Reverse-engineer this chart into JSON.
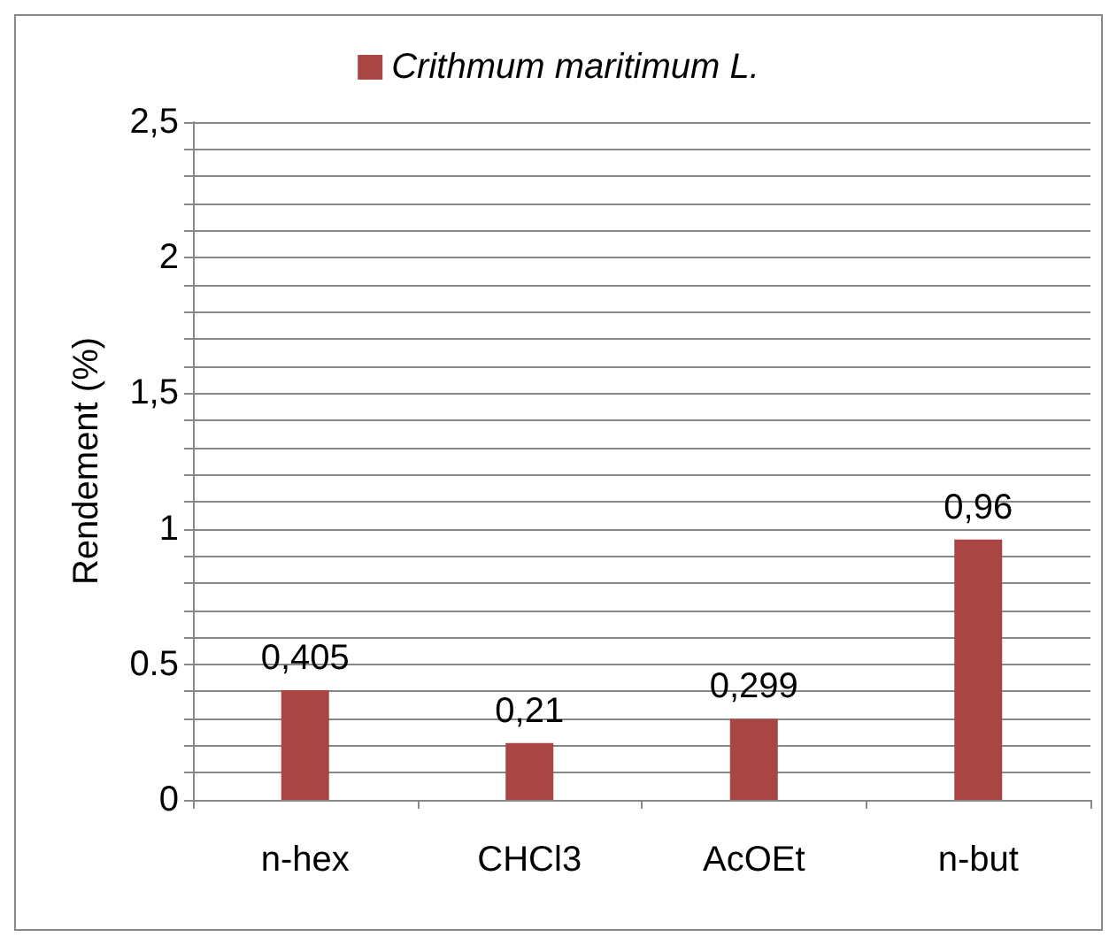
{
  "chart_data": {
    "type": "bar",
    "ylabel": "Rendement (%)",
    "categories": [
      "n-hex",
      "CHCl3",
      "AcOEt",
      "n-but"
    ],
    "series": [
      {
        "name": "Crithmum maritimum L.",
        "color": "#a94543",
        "values": [
          0.405,
          0.21,
          0.299,
          0.96
        ],
        "value_labels": [
          "0,405",
          "0,21",
          "0,299",
          "0,96"
        ]
      }
    ],
    "ylim": [
      0,
      2.5
    ],
    "yticks": [
      0,
      {
        "value": 0.1,
        "label": null
      },
      {
        "value": 0.2,
        "label": null
      },
      {
        "value": 0.3,
        "label": null
      },
      {
        "value": 0.4,
        "label": null
      },
      {
        "value": 0.5,
        "label": "0.5"
      },
      {
        "value": 0.6,
        "label": null
      },
      {
        "value": 0.7,
        "label": null
      },
      {
        "value": 0.8,
        "label": null
      },
      {
        "value": 0.9,
        "label": null
      },
      1,
      {
        "value": 1.1,
        "label": null
      },
      {
        "value": 1.2,
        "label": null
      },
      {
        "value": 1.3,
        "label": null
      },
      {
        "value": 1.4,
        "label": null
      },
      {
        "value": 1.5,
        "label": "1,5"
      },
      {
        "value": 1.6,
        "label": null
      },
      {
        "value": 1.7,
        "label": null
      },
      {
        "value": 1.8,
        "label": null
      },
      {
        "value": 1.9,
        "label": null
      },
      2,
      {
        "value": 2.1,
        "label": null
      },
      {
        "value": 2.2,
        "label": null
      },
      {
        "value": 2.3,
        "label": null
      },
      {
        "value": 2.4,
        "label": null
      },
      {
        "value": 2.5,
        "label": "2,5"
      }
    ],
    "grid": "y",
    "legend": "top"
  }
}
